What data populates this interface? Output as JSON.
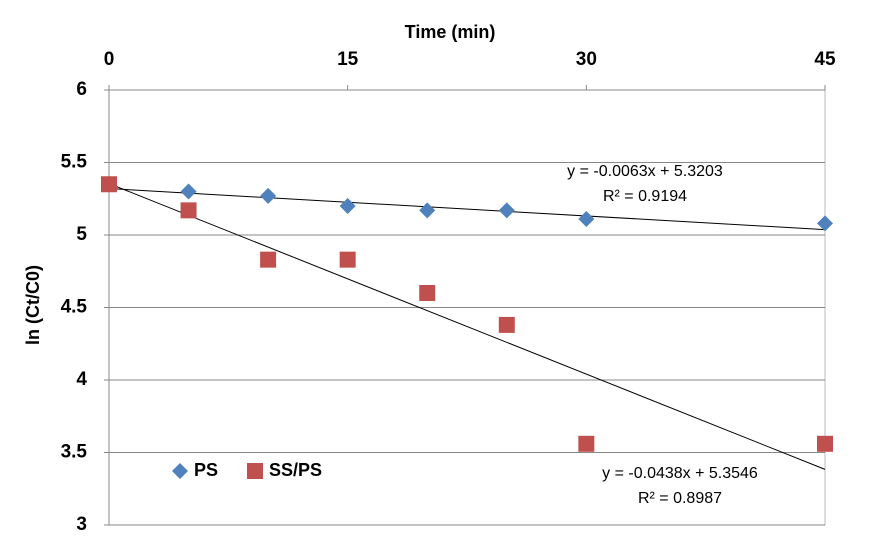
{
  "chart_data": {
    "type": "scatter",
    "x_label": "Time (min)",
    "y_label": "ln (Ct/C0)",
    "xlim": [
      0,
      45
    ],
    "xticks": [
      0,
      15,
      30,
      45
    ],
    "ylim": [
      3,
      6
    ],
    "yticks": [
      3,
      3.5,
      4,
      4.5,
      5,
      5.5,
      6
    ],
    "grid": true,
    "legend": "lower left",
    "series": [
      {
        "name": "PS",
        "color": "#4f81bd",
        "marker": "diamond",
        "x": [
          0,
          5,
          10,
          15,
          20,
          25,
          30,
          45
        ],
        "values": [
          5.35,
          5.3,
          5.27,
          5.2,
          5.17,
          5.17,
          5.11,
          5.08
        ],
        "trendline": {
          "slope": -0.0063,
          "intercept": 5.3203,
          "equation": "y = -0.0063x + 5.3203",
          "r2": "R² = 0.9194"
        }
      },
      {
        "name": "SS/PS",
        "color": "#c0504d",
        "marker": "square",
        "x": [
          0,
          5,
          10,
          15,
          20,
          25,
          30,
          45
        ],
        "values": [
          5.35,
          5.17,
          4.83,
          4.83,
          4.6,
          4.38,
          3.56,
          3.56
        ],
        "trendline": {
          "slope": -0.0438,
          "intercept": 5.3546,
          "equation": "y = -0.0438x + 5.3546",
          "r2": "R² = 0.8987"
        }
      }
    ]
  }
}
